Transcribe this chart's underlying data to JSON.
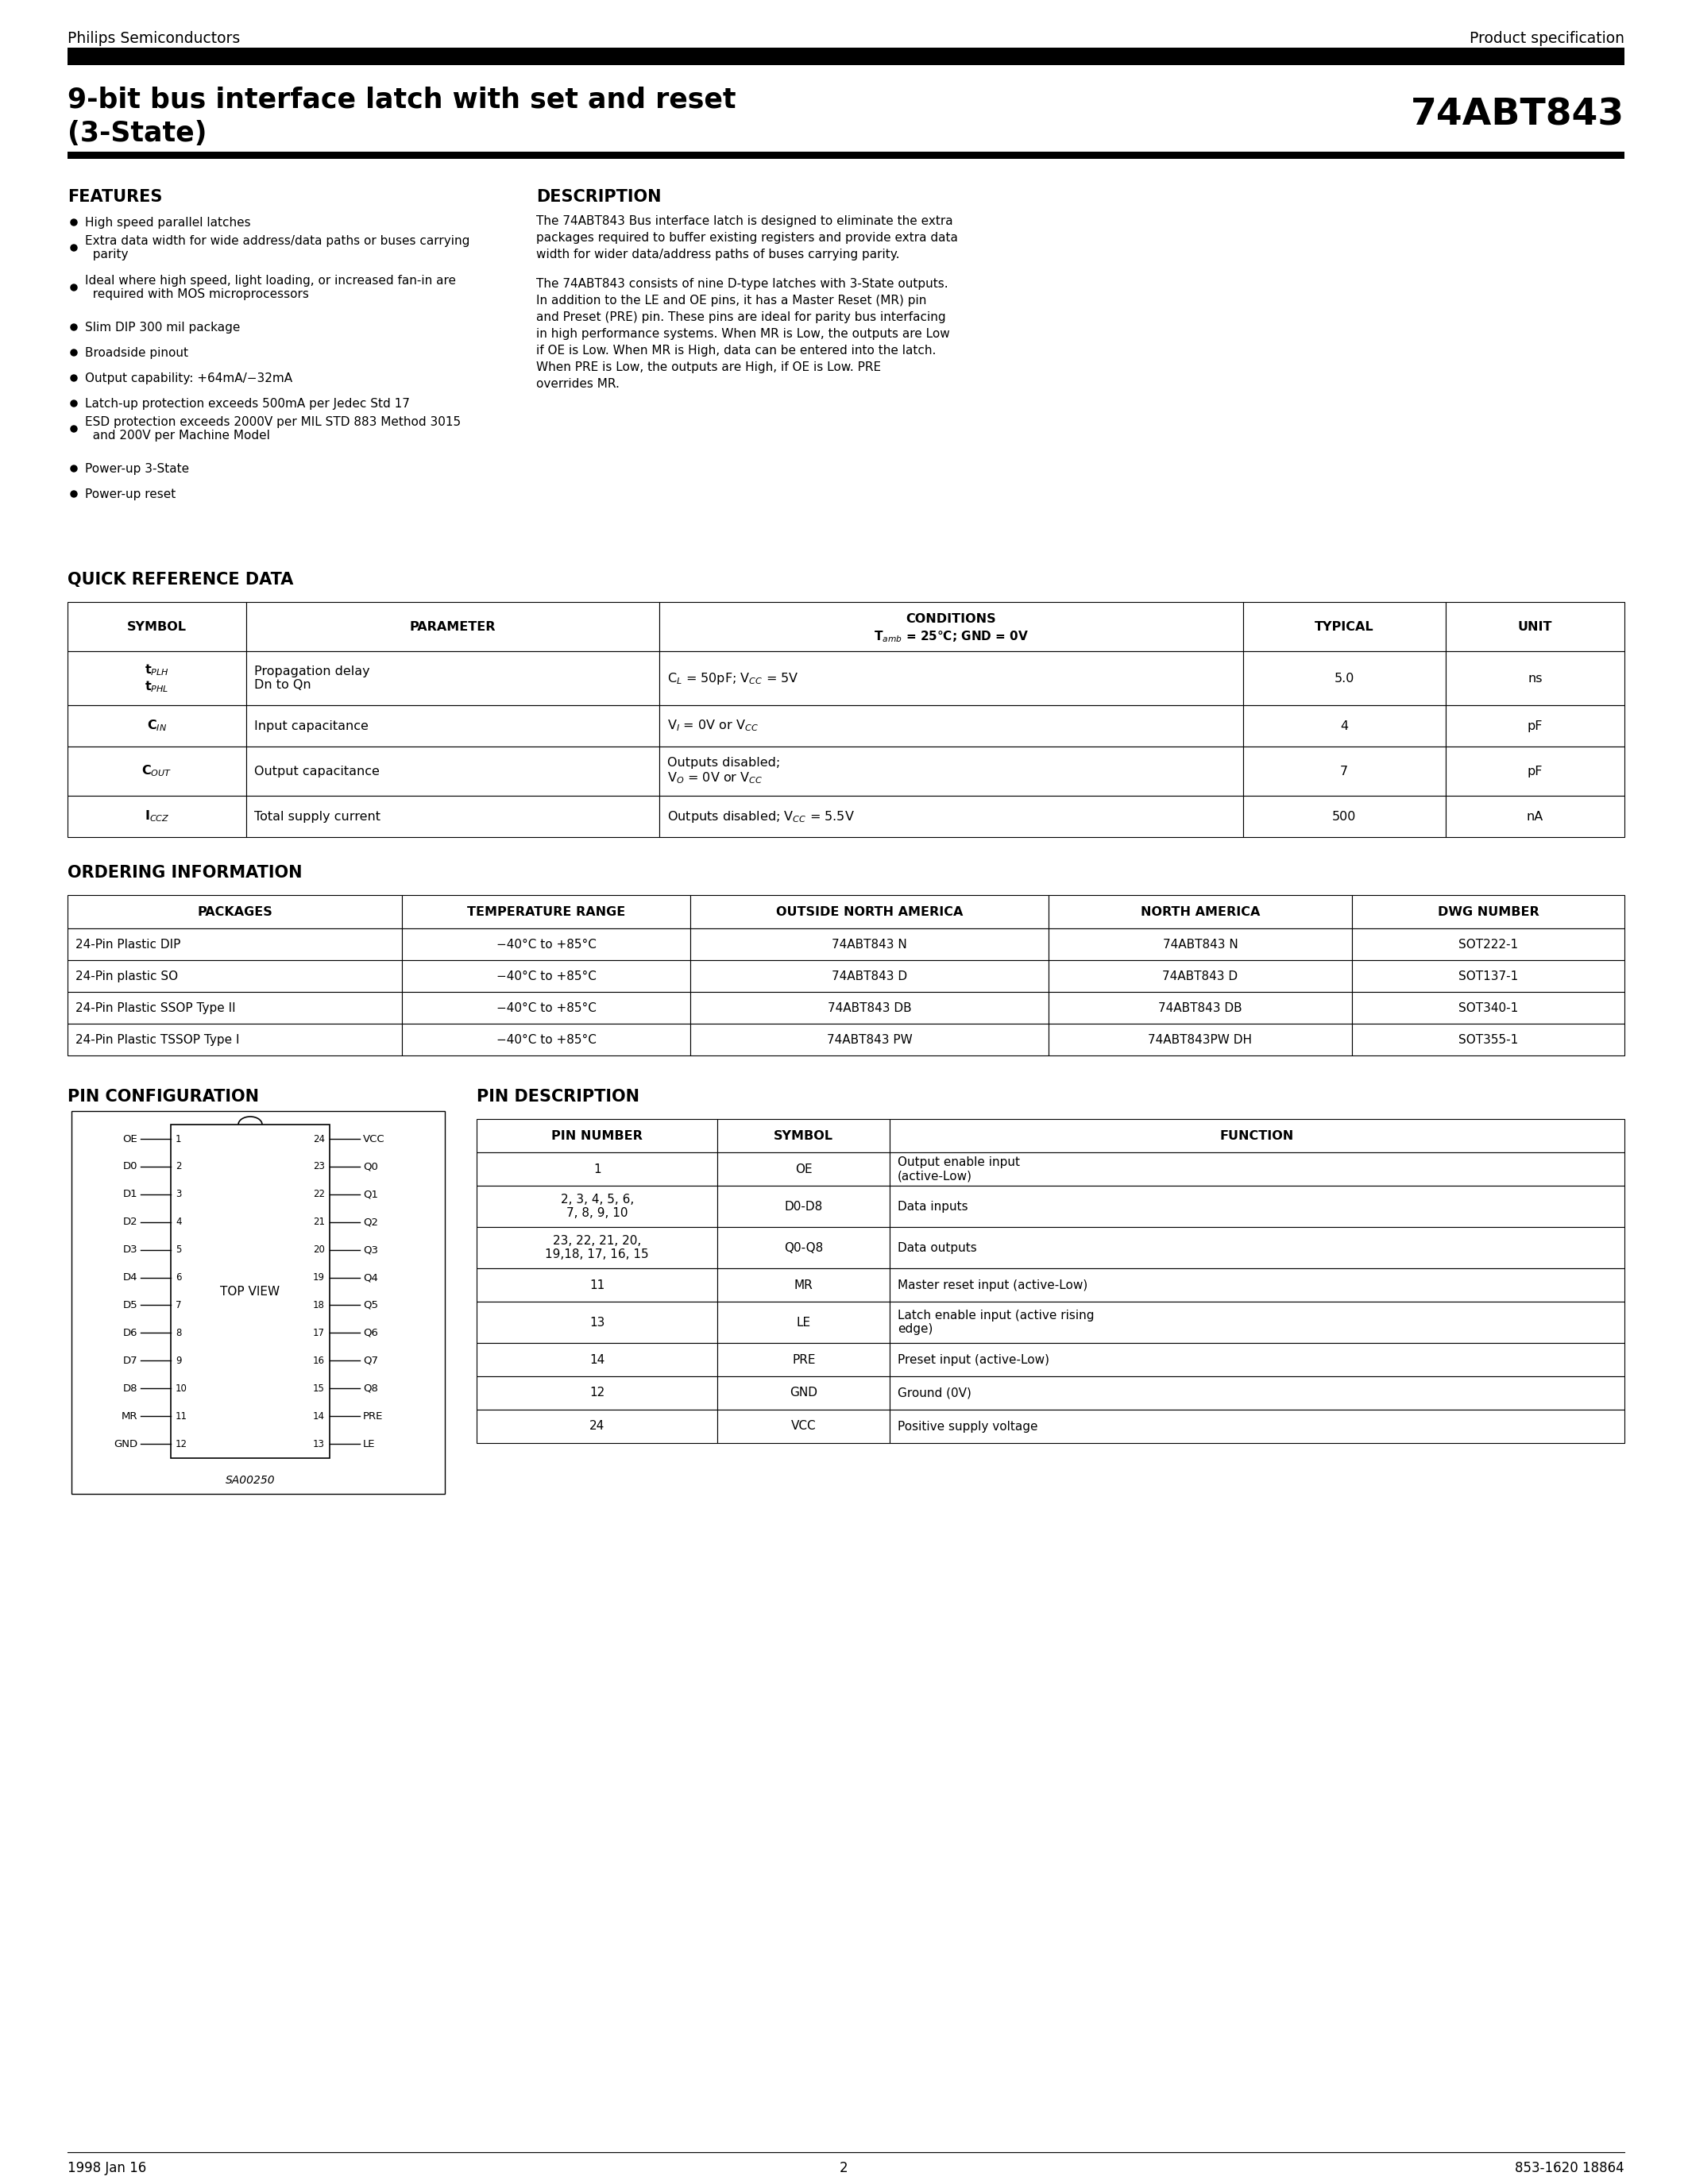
{
  "page_bg": "#ffffff",
  "header_left": "Philips Semiconductors",
  "header_right": "Product specification",
  "title_line1": "9-bit bus interface latch with set and reset",
  "title_line2": "(3-State)",
  "part_number": "74ABT843",
  "features_title": "FEATURES",
  "features": [
    "High speed parallel latches",
    "Extra data width for wide address/data paths or buses carrying\n     parity",
    "Ideal where high speed, light loading, or increased fan-in are\n     required with MOS microprocessors",
    "Slim DIP 300 mil package",
    "Broadside pinout",
    "Output capability: +64mA/−32mA",
    "Latch-up protection exceeds 500mA per Jedec Std 17",
    "ESD protection exceeds 2000V per MIL STD 883 Method 3015\n     and 200V per Machine Model",
    "Power-up 3-State",
    "Power-up reset"
  ],
  "description_title": "DESCRIPTION",
  "desc_p1_lines": [
    "The 74ABT843 Bus interface latch is designed to eliminate the extra",
    "packages required to buffer existing registers and provide extra data",
    "width for wider data/address paths of buses carrying parity."
  ],
  "desc_p2_lines": [
    "The 74ABT843 consists of nine D-type latches with 3-State outputs.",
    "In addition to the LE and OE pins, it has a Master Reset (MR) pin",
    "and Preset (PRE) pin. These pins are ideal for parity bus interfacing",
    "in high performance systems. When MR is Low, the outputs are Low",
    "if OE is Low. When MR is High, data can be entered into the latch.",
    "When PRE is Low, the outputs are High, if OE is Low. PRE",
    "overrides MR."
  ],
  "qrd_title": "QUICK REFERENCE DATA",
  "ordering_title": "ORDERING INFORMATION",
  "ordering_headers": [
    "PACKAGES",
    "TEMPERATURE RANGE",
    "OUTSIDE NORTH AMERICA",
    "NORTH AMERICA",
    "DWG NUMBER"
  ],
  "ordering_rows": [
    [
      "24-Pin Plastic DIP",
      "−40°C to +85°C",
      "74ABT843 N",
      "74ABT843 N",
      "SOT222-1"
    ],
    [
      "24-Pin plastic SO",
      "−40°C to +85°C",
      "74ABT843 D",
      "74ABT843 D",
      "SOT137-1"
    ],
    [
      "24-Pin Plastic SSOP Type II",
      "−40°C to +85°C",
      "74ABT843 DB",
      "74ABT843 DB",
      "SOT340-1"
    ],
    [
      "24-Pin Plastic TSSOP Type I",
      "−40°C to +85°C",
      "74ABT843 PW",
      "74ABT843PW DH",
      "SOT355-1"
    ]
  ],
  "pin_config_title": "PIN CONFIGURATION",
  "pin_desc_title": "PIN DESCRIPTION",
  "pin_desc_headers": [
    "PIN NUMBER",
    "SYMBOL",
    "FUNCTION"
  ],
  "pin_desc_rows": [
    [
      "1",
      "OE",
      "Output enable input\n(active-Low)"
    ],
    [
      "2, 3, 4, 5, 6,\n7, 8, 9, 10",
      "D0-D8",
      "Data inputs"
    ],
    [
      "23, 22, 21, 20,\n19,18, 17, 16, 15",
      "Q0-Q8",
      "Data outputs"
    ],
    [
      "11",
      "MR",
      "Master reset input (active-Low)"
    ],
    [
      "13",
      "LE",
      "Latch enable input (active rising\nedge)"
    ],
    [
      "14",
      "PRE",
      "Preset input (active-Low)"
    ],
    [
      "12",
      "GND",
      "Ground (0V)"
    ],
    [
      "24",
      "VCC",
      "Positive supply voltage"
    ]
  ],
  "left_pins": [
    "OE",
    "D0",
    "D1",
    "D2",
    "D3",
    "D4",
    "D5",
    "D6",
    "D7",
    "D8",
    "MR",
    "GND"
  ],
  "left_nums": [
    "1",
    "2",
    "3",
    "4",
    "5",
    "6",
    "7",
    "8",
    "9",
    "10",
    "11",
    "12"
  ],
  "right_pins": [
    "VCC",
    "Q0",
    "Q1",
    "Q2",
    "Q3",
    "Q4",
    "Q5",
    "Q6",
    "Q7",
    "Q8",
    "PRE",
    "LE"
  ],
  "right_nums": [
    "24",
    "23",
    "22",
    "21",
    "20",
    "19",
    "18",
    "17",
    "16",
    "15",
    "14",
    "13"
  ],
  "footer_left": "1998 Jan 16",
  "footer_center": "2",
  "footer_right": "853-1620 18864"
}
